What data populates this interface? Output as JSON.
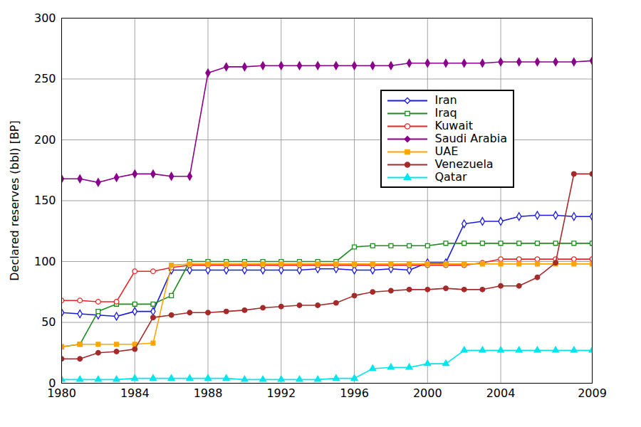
{
  "chart_data": {
    "type": "line",
    "y_label": "Declared reserves (bbl) [BP]",
    "x": [
      1980,
      1981,
      1982,
      1983,
      1984,
      1985,
      1986,
      1987,
      1988,
      1989,
      1990,
      1991,
      1992,
      1993,
      1994,
      1995,
      1996,
      1997,
      1998,
      1999,
      2000,
      2001,
      2002,
      2003,
      2004,
      2005,
      2006,
      2007,
      2008,
      2009
    ],
    "xlim": [
      1980,
      2009
    ],
    "xticks": [
      1980,
      1984,
      1988,
      1992,
      1996,
      2000,
      2004,
      2009
    ],
    "ylim": [
      0,
      300
    ],
    "yticks": [
      0,
      50,
      100,
      150,
      200,
      250,
      300
    ],
    "grid": true,
    "legend": "upper right",
    "series": [
      {
        "name": "Iran",
        "color": "#1a1ae6",
        "marker": "diamond-open",
        "values": [
          58,
          57,
          56,
          55,
          59,
          59,
          93,
          93,
          93,
          93,
          93,
          93,
          93,
          93,
          94,
          94,
          93,
          93,
          94,
          93,
          99,
          99,
          131,
          133,
          133,
          137,
          138,
          138,
          137,
          137
        ]
      },
      {
        "name": "Iraq",
        "color": "#1e8c1e",
        "marker": "square-open",
        "values": [
          30,
          32,
          59,
          65,
          65,
          65,
          72,
          100,
          100,
          100,
          100,
          100,
          100,
          100,
          100,
          100,
          112,
          113,
          113,
          113,
          113,
          115,
          115,
          115,
          115,
          115,
          115,
          115,
          115,
          115
        ]
      },
      {
        "name": "Kuwait",
        "color": "#ee2222",
        "marker": "circle-open",
        "values": [
          68,
          68,
          67,
          67,
          92,
          92,
          95,
          97,
          97,
          97,
          97,
          97,
          97,
          97,
          97,
          97,
          97,
          97,
          97,
          97,
          97,
          97,
          97,
          99,
          102,
          102,
          102,
          102,
          102,
          102
        ]
      },
      {
        "name": "Saudi Arabia",
        "color": "#8b008b",
        "marker": "diamond",
        "values": [
          168,
          168,
          165,
          169,
          172,
          172,
          170,
          170,
          255,
          260,
          260,
          261,
          261,
          261,
          261,
          261,
          261,
          261,
          261,
          263,
          263,
          263,
          263,
          263,
          264,
          264,
          264,
          264,
          264,
          265
        ]
      },
      {
        "name": "UAE",
        "color": "#ffa500",
        "marker": "square",
        "values": [
          30,
          32,
          32,
          32,
          32,
          33,
          97,
          98,
          98,
          98,
          98,
          98,
          98,
          98,
          98,
          98,
          98,
          98,
          98,
          98,
          98,
          98,
          98,
          98,
          98,
          98,
          98,
          98,
          98,
          98
        ]
      },
      {
        "name": "Venezuela",
        "color": "#a52a2a",
        "marker": "circle",
        "values": [
          20,
          20,
          25,
          26,
          28,
          54,
          56,
          58,
          58,
          59,
          60,
          62,
          63,
          64,
          64,
          66,
          72,
          75,
          76,
          77,
          77,
          78,
          77,
          77,
          80,
          80,
          87,
          99,
          172,
          172
        ]
      },
      {
        "name": "Qatar",
        "color": "#00e5ee",
        "marker": "triangle",
        "values": [
          3,
          3,
          3,
          3,
          4,
          4,
          4,
          4,
          4,
          4,
          3,
          3,
          3,
          3,
          3,
          4,
          4,
          12,
          13,
          13,
          16,
          16,
          27,
          27,
          27,
          27,
          27,
          27,
          27,
          27
        ]
      }
    ]
  }
}
